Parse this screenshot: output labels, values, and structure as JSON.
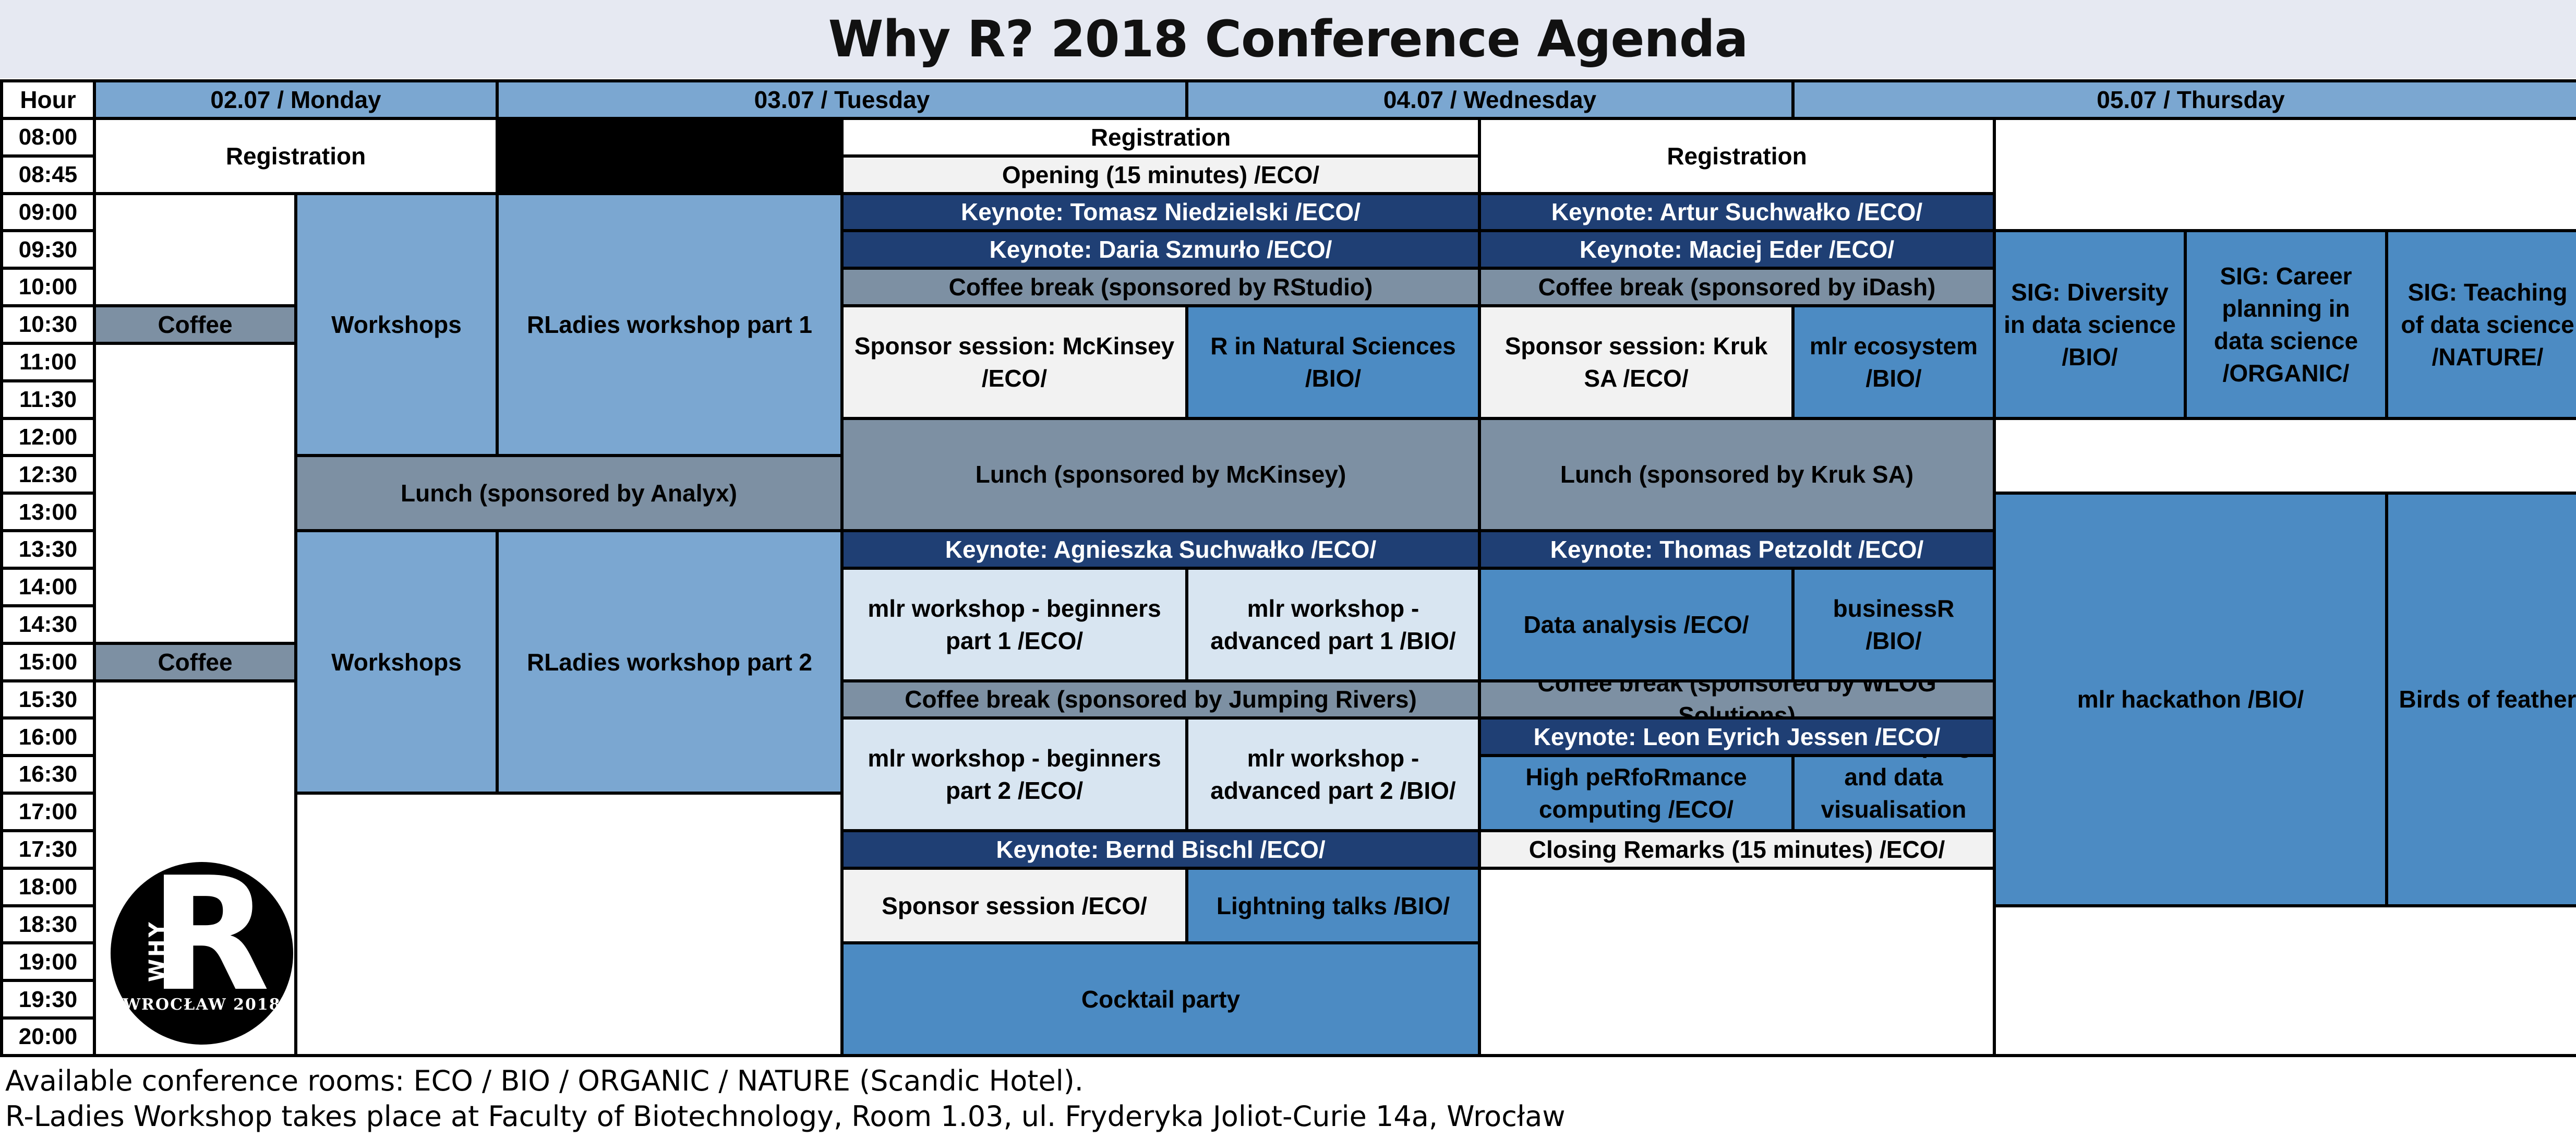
{
  "title": "Why R? 2018 Conference Agenda",
  "headers": {
    "hour": "Hour",
    "monday": "02.07 / Monday",
    "tuesday": "03.07 / Tuesday",
    "wednesday": "04.07 / Wednesday",
    "thursday": "05.07 / Thursday"
  },
  "hours": [
    "08:00",
    "08:45",
    "09:00",
    "09:30",
    "10:00",
    "10:30",
    "11:00",
    "11:30",
    "12:00",
    "12:30",
    "13:00",
    "13:30",
    "14:00",
    "14:30",
    "15:00",
    "15:30",
    "16:00",
    "16:30",
    "17:00",
    "17:30",
    "18:00",
    "18:30",
    "19:00",
    "19:30",
    "20:00"
  ],
  "monday": {
    "registration": "Registration",
    "coffee_1": "Coffee",
    "workshops_1": "Workshops",
    "rladies_1": "RLadies workshop part 1",
    "lunch": "Lunch (sponsored by Analyx)",
    "coffee_2": "Coffee",
    "workshops_2": "Workshops",
    "rladies_2": "RLadies workshop part 2"
  },
  "tuesday": {
    "registration": "Registration",
    "opening": "Opening (15 minutes) /ECO/",
    "keynote_1": "Keynote: Tomasz Niedzielski /ECO/",
    "keynote_2": "Keynote: Daria Szmurło /ECO/",
    "coffee_1": "Coffee break (sponsored by RStudio)",
    "sponsor_1": "Sponsor session: McKinsey /ECO/",
    "natural_sciences": "R in Natural Sciences /BIO/",
    "lunch": "Lunch (sponsored by McKinsey)",
    "keynote_3": "Keynote: Agnieszka Suchwałko /ECO/",
    "mlr_beg_1": "mlr workshop - beginners part 1 /ECO/",
    "mlr_adv_1": "mlr workshop - advanced part 1 /BIO/",
    "coffee_2": "Coffee break (sponsored by Jumping Rivers)",
    "mlr_beg_2": "mlr workshop - beginners part 2 /ECO/",
    "mlr_adv_2": "mlr workshop - advanced part 2 /BIO/",
    "keynote_4": "Keynote: Bernd Bischl /ECO/",
    "sponsor_2": "Sponsor session /ECO/",
    "lightning": "Lightning talks /BIO/",
    "cocktail": "Cocktail party"
  },
  "wednesday": {
    "registration": "Registration",
    "keynote_1": "Keynote: Artur Suchwałko /ECO/",
    "keynote_2": "Keynote: Maciej Eder /ECO/",
    "coffee_1": "Coffee break (sponsored by iDash)",
    "sponsor": "Sponsor session: Kruk SA /ECO/",
    "mlr_ecosystem": "mlr ecosystem /BIO/",
    "lunch": "Lunch (sponsored by Kruk SA)",
    "keynote_3": "Keynote: Thomas Petzoldt /ECO/",
    "data_analysis": "Data analysis /ECO/",
    "businessr": "businessR /BIO/",
    "coffee_2": "Coffee break (sponsored by WLOG Solutions)",
    "keynote_4": "Keynote: Leon Eyrich Jessen /ECO/",
    "hpc": "High peRfoRmance computing /ECO/",
    "webscraping": "Web scraping and data visualisation /BIO/",
    "closing": "Closing Remarks (15 minutes) /ECO/"
  },
  "thursday": {
    "sig_diversity": "SIG: Diversity in data science /BIO/",
    "sig_career": "SIG: Career planning in data science /ORGANIC/",
    "sig_teaching": "SIG: Teaching of data science /NATURE/",
    "hackathon": "mlr hackathon /BIO/",
    "birds": "Birds of feather"
  },
  "logo": {
    "why": "WHY",
    "letter": "R",
    "city": "WROCŁAW 2018"
  },
  "footer": {
    "line_1": "Available conference rooms: ECO / BIO / ORGANIC / NATURE (Scandic Hotel).",
    "line_2": "R-Ladies Workshop takes place at Faculty of Biotechnology, Room 1.03, ul. Fryderyka Joliot-Curie 14a, Wrocław"
  },
  "colors": {
    "navy": "#1f3f74",
    "mid_blue": "#4c8bc3",
    "light_blue": "#7ba7d1",
    "gray_blue": "#7d90a3",
    "pale_blue": "#d8e5f1",
    "off_white": "#f2f2f2",
    "title_bg": "#e6e9f2"
  }
}
